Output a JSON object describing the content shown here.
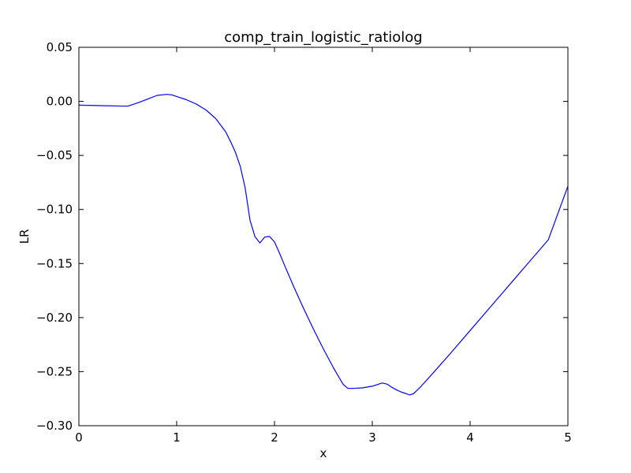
{
  "chart_data": {
    "type": "line",
    "title": "comp_train_logistic_ratiolog",
    "xlabel": "x",
    "ylabel": "LR",
    "xlim": [
      0,
      5
    ],
    "ylim": [
      -0.3,
      0.05
    ],
    "xticks": [
      0,
      1,
      2,
      3,
      4,
      5
    ],
    "xtick_labels": [
      "0",
      "1",
      "2",
      "3",
      "4",
      "5"
    ],
    "yticks": [
      0.05,
      0.0,
      -0.05,
      -0.1,
      -0.15,
      -0.2,
      -0.25,
      -0.3
    ],
    "ytick_labels": [
      "0.05",
      "0.00",
      "−0.05",
      "−0.10",
      "−0.15",
      "−0.20",
      "−0.25",
      "−0.30"
    ],
    "grid": false,
    "series": [
      {
        "color": "#0000ff",
        "x": [
          0.0,
          0.5,
          0.6,
          0.7,
          0.8,
          0.9,
          0.95,
          1.0,
          1.1,
          1.2,
          1.3,
          1.4,
          1.5,
          1.55,
          1.6,
          1.65,
          1.7,
          1.75,
          1.8,
          1.85,
          1.9,
          1.95,
          2.0,
          2.05,
          2.1,
          2.2,
          2.3,
          2.4,
          2.5,
          2.6,
          2.7,
          2.75,
          2.8,
          2.9,
          3.0,
          3.05,
          3.1,
          3.15,
          3.2,
          3.25,
          3.3,
          3.35,
          3.38,
          3.42,
          3.45,
          3.5,
          3.6,
          3.8,
          4.0,
          4.2,
          4.4,
          4.6,
          4.8,
          5.0
        ],
        "y": [
          -0.0035,
          -0.0045,
          -0.0015,
          0.002,
          0.0055,
          0.0065,
          0.006,
          0.0045,
          0.0015,
          -0.0025,
          -0.008,
          -0.016,
          -0.028,
          -0.037,
          -0.047,
          -0.06,
          -0.08,
          -0.11,
          -0.125,
          -0.131,
          -0.1255,
          -0.125,
          -0.13,
          -0.14,
          -0.151,
          -0.172,
          -0.192,
          -0.211,
          -0.229,
          -0.246,
          -0.2615,
          -0.2655,
          -0.2655,
          -0.265,
          -0.2635,
          -0.262,
          -0.2605,
          -0.2615,
          -0.2645,
          -0.267,
          -0.269,
          -0.2705,
          -0.2715,
          -0.2705,
          -0.268,
          -0.2635,
          -0.2535,
          -0.233,
          -0.212,
          -0.191,
          -0.17,
          -0.149,
          -0.128,
          -0.0785
        ]
      }
    ]
  }
}
